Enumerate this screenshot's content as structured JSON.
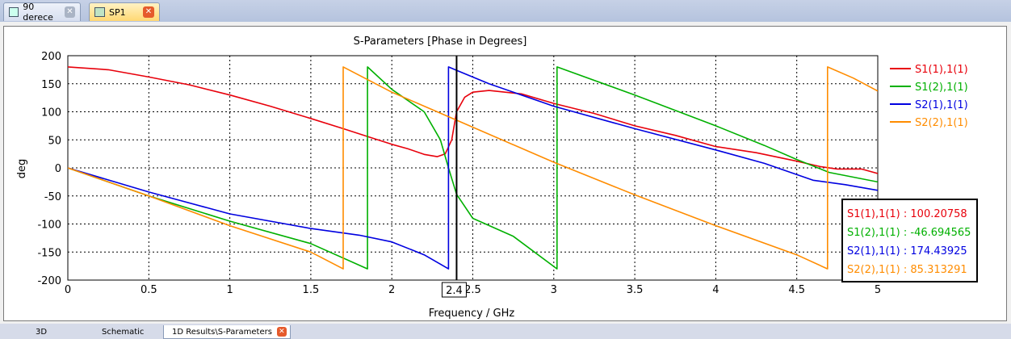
{
  "top_tabs": [
    {
      "label": "90 derece",
      "active": false
    },
    {
      "label": "SP1",
      "active": true
    }
  ],
  "bottom_tabs": [
    {
      "label": "3D"
    },
    {
      "label": "Schematic"
    },
    {
      "label": "1D Results\\S-Parameters",
      "active": true
    }
  ],
  "close_glyph": "✕",
  "colors": {
    "s11": "#e8000b",
    "s21": "#00b000",
    "s12": "#0000e0",
    "s22": "#ff8c00",
    "marker": "#000000",
    "grid": "#000000"
  },
  "chart_data": {
    "type": "line",
    "title": "S-Parameters [Phase in Degrees]",
    "xlabel": "Frequency / GHz",
    "ylabel": "deg",
    "xlim": [
      0,
      5
    ],
    "ylim": [
      -200,
      200
    ],
    "xticks": [
      "0",
      "0.5",
      "1",
      "1.5",
      "2",
      "2.5",
      "3",
      "3.5",
      "4",
      "4.5",
      "5"
    ],
    "yticks": [
      "200",
      "150",
      "100",
      "50",
      "0",
      "-50",
      "-100",
      "-150",
      "-200"
    ],
    "grid": true,
    "legend_position": "right",
    "marker": {
      "x": 2.4,
      "label": "2.4"
    },
    "series": [
      {
        "name": "S1(1),1(1)",
        "color": "#e8000b",
        "points": [
          [
            0,
            180
          ],
          [
            0.25,
            175
          ],
          [
            0.5,
            162
          ],
          [
            0.75,
            148
          ],
          [
            1,
            130
          ],
          [
            1.25,
            110
          ],
          [
            1.5,
            88
          ],
          [
            1.7,
            70
          ],
          [
            1.85,
            56
          ],
          [
            2,
            42
          ],
          [
            2.1,
            34
          ],
          [
            2.2,
            24
          ],
          [
            2.28,
            20
          ],
          [
            2.33,
            25
          ],
          [
            2.37,
            50
          ],
          [
            2.4,
            100
          ],
          [
            2.45,
            126
          ],
          [
            2.5,
            135
          ],
          [
            2.6,
            138
          ],
          [
            2.8,
            132
          ],
          [
            3,
            115
          ],
          [
            3.25,
            97
          ],
          [
            3.5,
            75
          ],
          [
            3.75,
            58
          ],
          [
            4,
            38
          ],
          [
            4.25,
            27
          ],
          [
            4.5,
            12
          ],
          [
            4.65,
            2
          ],
          [
            4.75,
            -2
          ],
          [
            4.9,
            -2
          ],
          [
            5,
            -10
          ]
        ]
      },
      {
        "name": "S1(2),1(1)",
        "color": "#00b000",
        "points": [
          [
            0,
            0
          ],
          [
            0.5,
            -50
          ],
          [
            1,
            -95
          ],
          [
            1.5,
            -135
          ],
          [
            1.85,
            -180
          ],
          [
            1.85,
            180
          ],
          [
            2,
            140
          ],
          [
            2.2,
            100
          ],
          [
            2.3,
            50
          ],
          [
            2.35,
            0
          ],
          [
            2.4,
            -47
          ],
          [
            2.5,
            -90
          ],
          [
            2.75,
            -122
          ],
          [
            3.02,
            -180
          ],
          [
            3.02,
            180
          ],
          [
            3.5,
            130
          ],
          [
            4,
            75
          ],
          [
            4.3,
            40
          ],
          [
            4.5,
            15
          ],
          [
            4.7,
            -8
          ],
          [
            5,
            -25
          ]
        ]
      },
      {
        "name": "S2(1),1(1)",
        "color": "#0000e0",
        "points": [
          [
            0,
            0
          ],
          [
            0.5,
            -43
          ],
          [
            1,
            -82
          ],
          [
            1.5,
            -108
          ],
          [
            1.8,
            -120
          ],
          [
            2,
            -132
          ],
          [
            2.2,
            -155
          ],
          [
            2.35,
            -180
          ],
          [
            2.35,
            180
          ],
          [
            2.4,
            174
          ],
          [
            2.6,
            150
          ],
          [
            3,
            110
          ],
          [
            3.5,
            70
          ],
          [
            4,
            32
          ],
          [
            4.3,
            8
          ],
          [
            4.6,
            -22
          ],
          [
            4.8,
            -30
          ],
          [
            5,
            -40
          ]
        ]
      },
      {
        "name": "S2(2),1(1)",
        "color": "#ff8c00",
        "points": [
          [
            0,
            0
          ],
          [
            0.5,
            -50
          ],
          [
            1,
            -103
          ],
          [
            1.5,
            -150
          ],
          [
            1.7,
            -180
          ],
          [
            1.7,
            180
          ],
          [
            2,
            135
          ],
          [
            2.4,
            85
          ],
          [
            3,
            10
          ],
          [
            3.5,
            -48
          ],
          [
            4,
            -103
          ],
          [
            4.5,
            -155
          ],
          [
            4.69,
            -180
          ],
          [
            4.69,
            180
          ],
          [
            4.85,
            160
          ],
          [
            5,
            137
          ]
        ]
      }
    ],
    "readout": [
      {
        "series": "S1(1),1(1)",
        "text": "S1(1),1(1) : 100.20758"
      },
      {
        "series": "S1(2),1(1)",
        "text": "S1(2),1(1) : -46.694565"
      },
      {
        "series": "S2(1),1(1)",
        "text": "S2(1),1(1) : 174.43925"
      },
      {
        "series": "S2(2),1(1)",
        "text": "S2(2),1(1) : 85.313291"
      }
    ]
  }
}
